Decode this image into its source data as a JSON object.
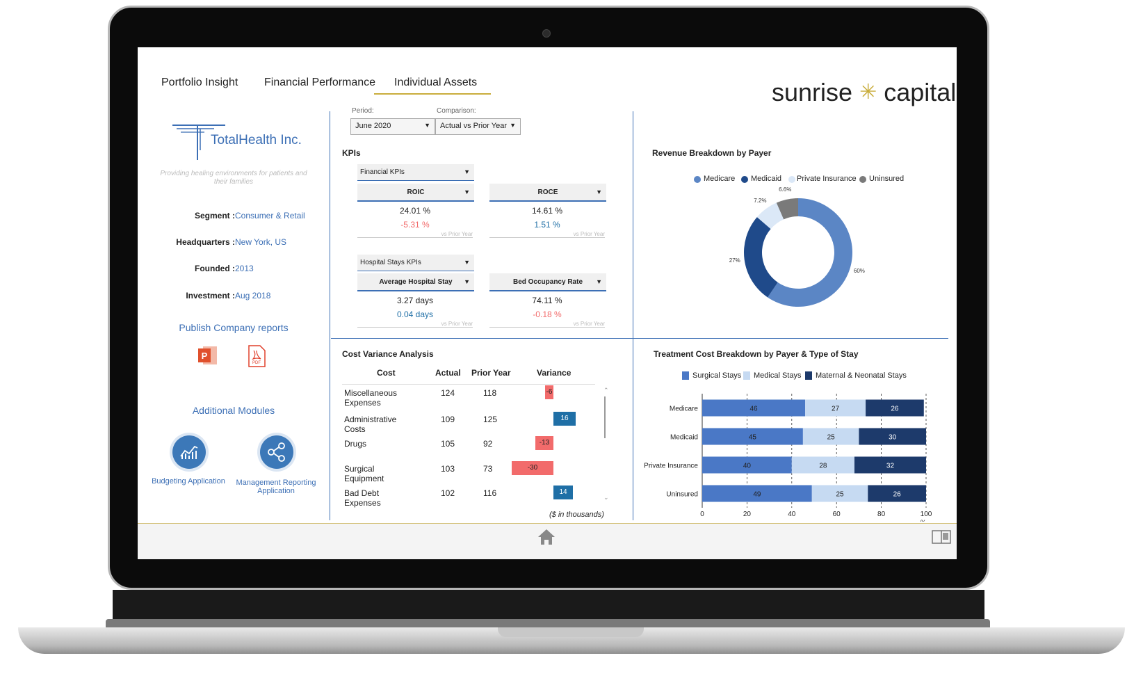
{
  "nav": {
    "tabs": [
      "Portfolio Insight",
      "Financial Performance",
      "Individual Assets"
    ],
    "active": "Individual Assets"
  },
  "brand": {
    "left": "sunrise",
    "right": "capital"
  },
  "company": {
    "name": "TotalHealth Inc.",
    "tagline": "Providing healing environments for patients and their families",
    "segment_label": "Segment :",
    "segment": "Consumer & Retail",
    "hq_label": "Headquarters :",
    "hq": "New York, US",
    "founded_label": "Founded :",
    "founded": "2013",
    "investment_label": "Investment :",
    "investment": "Aug 2018"
  },
  "publish": {
    "title": "Publish Company reports",
    "pdf_text": "PDF",
    "ppt_text": "P"
  },
  "modules": {
    "title": "Additional Modules",
    "items": [
      "Budgeting Application",
      "Management Reporting Application"
    ]
  },
  "filters": {
    "period_label": "Period:",
    "period_value": "June 2020",
    "comparison_label": "Comparison:",
    "comparison_value": "Actual vs Prior Year"
  },
  "kpis": {
    "title": "KPIs",
    "financial": {
      "group": "Financial KPIs",
      "left": {
        "name": "ROIC",
        "value": "24.01 %",
        "variance": "-5.31 %",
        "note": "vs Prior Year"
      },
      "right": {
        "name": "ROCE",
        "value": "14.61 %",
        "variance": "1.51 %",
        "note": "vs Prior Year"
      }
    },
    "hospital": {
      "group": "Hospital Stays KPIs",
      "left": {
        "name": "Average Hospital Stay",
        "value": "3.27 days",
        "variance": "0.04 days",
        "note": "vs Prior Year"
      },
      "right": {
        "name": "Bed Occupancy Rate",
        "value": "74.11 %",
        "variance": "-0.18 %",
        "note": "vs Prior Year"
      }
    }
  },
  "cost_variance": {
    "title": "Cost Variance Analysis",
    "headers": [
      "Cost",
      "Actual",
      "Prior Year",
      "Variance"
    ],
    "rows": [
      {
        "cost": "Miscellaneous Expenses",
        "actual": "124",
        "prior": "118",
        "variance": "-6"
      },
      {
        "cost": "Administrative Costs",
        "actual": "109",
        "prior": "125",
        "variance": "16"
      },
      {
        "cost": "Drugs",
        "actual": "105",
        "prior": "92",
        "variance": "-13"
      },
      {
        "cost": "Surgical Equipment",
        "actual": "103",
        "prior": "73",
        "variance": "-30"
      },
      {
        "cost": "Bad Debt Expenses",
        "actual": "102",
        "prior": "116",
        "variance": "14"
      }
    ],
    "unit_note": "($ in thousands)"
  },
  "colors": {
    "accent": "#3c6fb5",
    "gold": "#c9ad3c",
    "positive": "#1f6fa6",
    "negative": "#f26b6b",
    "medicare": "#5b86c5",
    "medicaid": "#1f4a8a",
    "private": "#dbe8f7",
    "uninsured": "#7a7a7a",
    "surgical": "#4a78c6",
    "medical": "#c6daf2",
    "maternal": "#1d3a6b"
  },
  "chart_data": [
    {
      "type": "pie",
      "title": "Revenue Breakdown by Payer",
      "categories": [
        "Medicare",
        "Medicaid",
        "Private Insurance",
        "Uninsured"
      ],
      "values": [
        60,
        27,
        7.2,
        6.6
      ],
      "labels": [
        "60%",
        "27%",
        "7.2%",
        "6.6%"
      ],
      "legend": "top"
    },
    {
      "type": "bar",
      "orientation": "horizontal-stacked",
      "title": "Treatment Cost Breakdown by Payer & Type of Stay",
      "categories": [
        "Medicare",
        "Medicaid",
        "Private Insurance",
        "Uninsured"
      ],
      "series": [
        {
          "name": "Surgical Stays",
          "values": [
            46,
            45,
            40,
            49
          ]
        },
        {
          "name": "Medical Stays",
          "values": [
            27,
            25,
            28,
            25
          ]
        },
        {
          "name": "Maternal & Neonatal Stays",
          "values": [
            26,
            30,
            32,
            26
          ]
        }
      ],
      "xticks": [
        "0",
        "20",
        "40",
        "60",
        "80",
        "100"
      ],
      "xunit": "%",
      "xlim": [
        0,
        100
      ],
      "legend": "top"
    }
  ]
}
